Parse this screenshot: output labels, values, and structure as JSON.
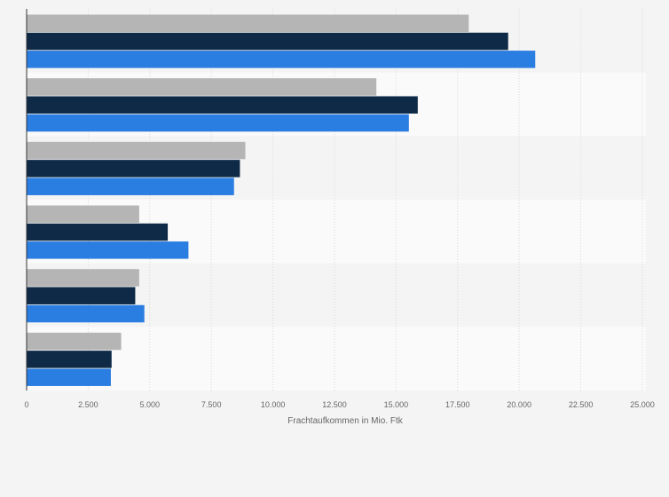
{
  "chart_data": {
    "type": "bar",
    "orientation": "horizontal",
    "title": "",
    "xlabel": "Frachtaufkommen in Mio. Ftk",
    "ylabel": "",
    "xlim": [
      0,
      25000
    ],
    "x_ticks": [
      0,
      2500,
      5000,
      7500,
      10000,
      12500,
      15000,
      17500,
      20000,
      22500,
      25000
    ],
    "x_tick_labels": [
      "0",
      "2.500",
      "5.000",
      "7.500",
      "10.000",
      "12.500",
      "15.000",
      "17.500",
      "20.000",
      "22.500",
      "25.000"
    ],
    "grid": true,
    "legend": "none",
    "categories": [
      "",
      "",
      "",
      "",
      "",
      ""
    ],
    "series": [
      {
        "color": "#b5b5b5",
        "values": [
          17950,
          14200,
          8880,
          4570,
          4570,
          3840
        ]
      },
      {
        "color": "#0e2a47",
        "values": [
          19550,
          15880,
          8660,
          5730,
          4410,
          3450
        ]
      },
      {
        "color": "#2a7de1",
        "values": [
          20650,
          15520,
          8420,
          6570,
          4780,
          3420
        ]
      }
    ]
  }
}
